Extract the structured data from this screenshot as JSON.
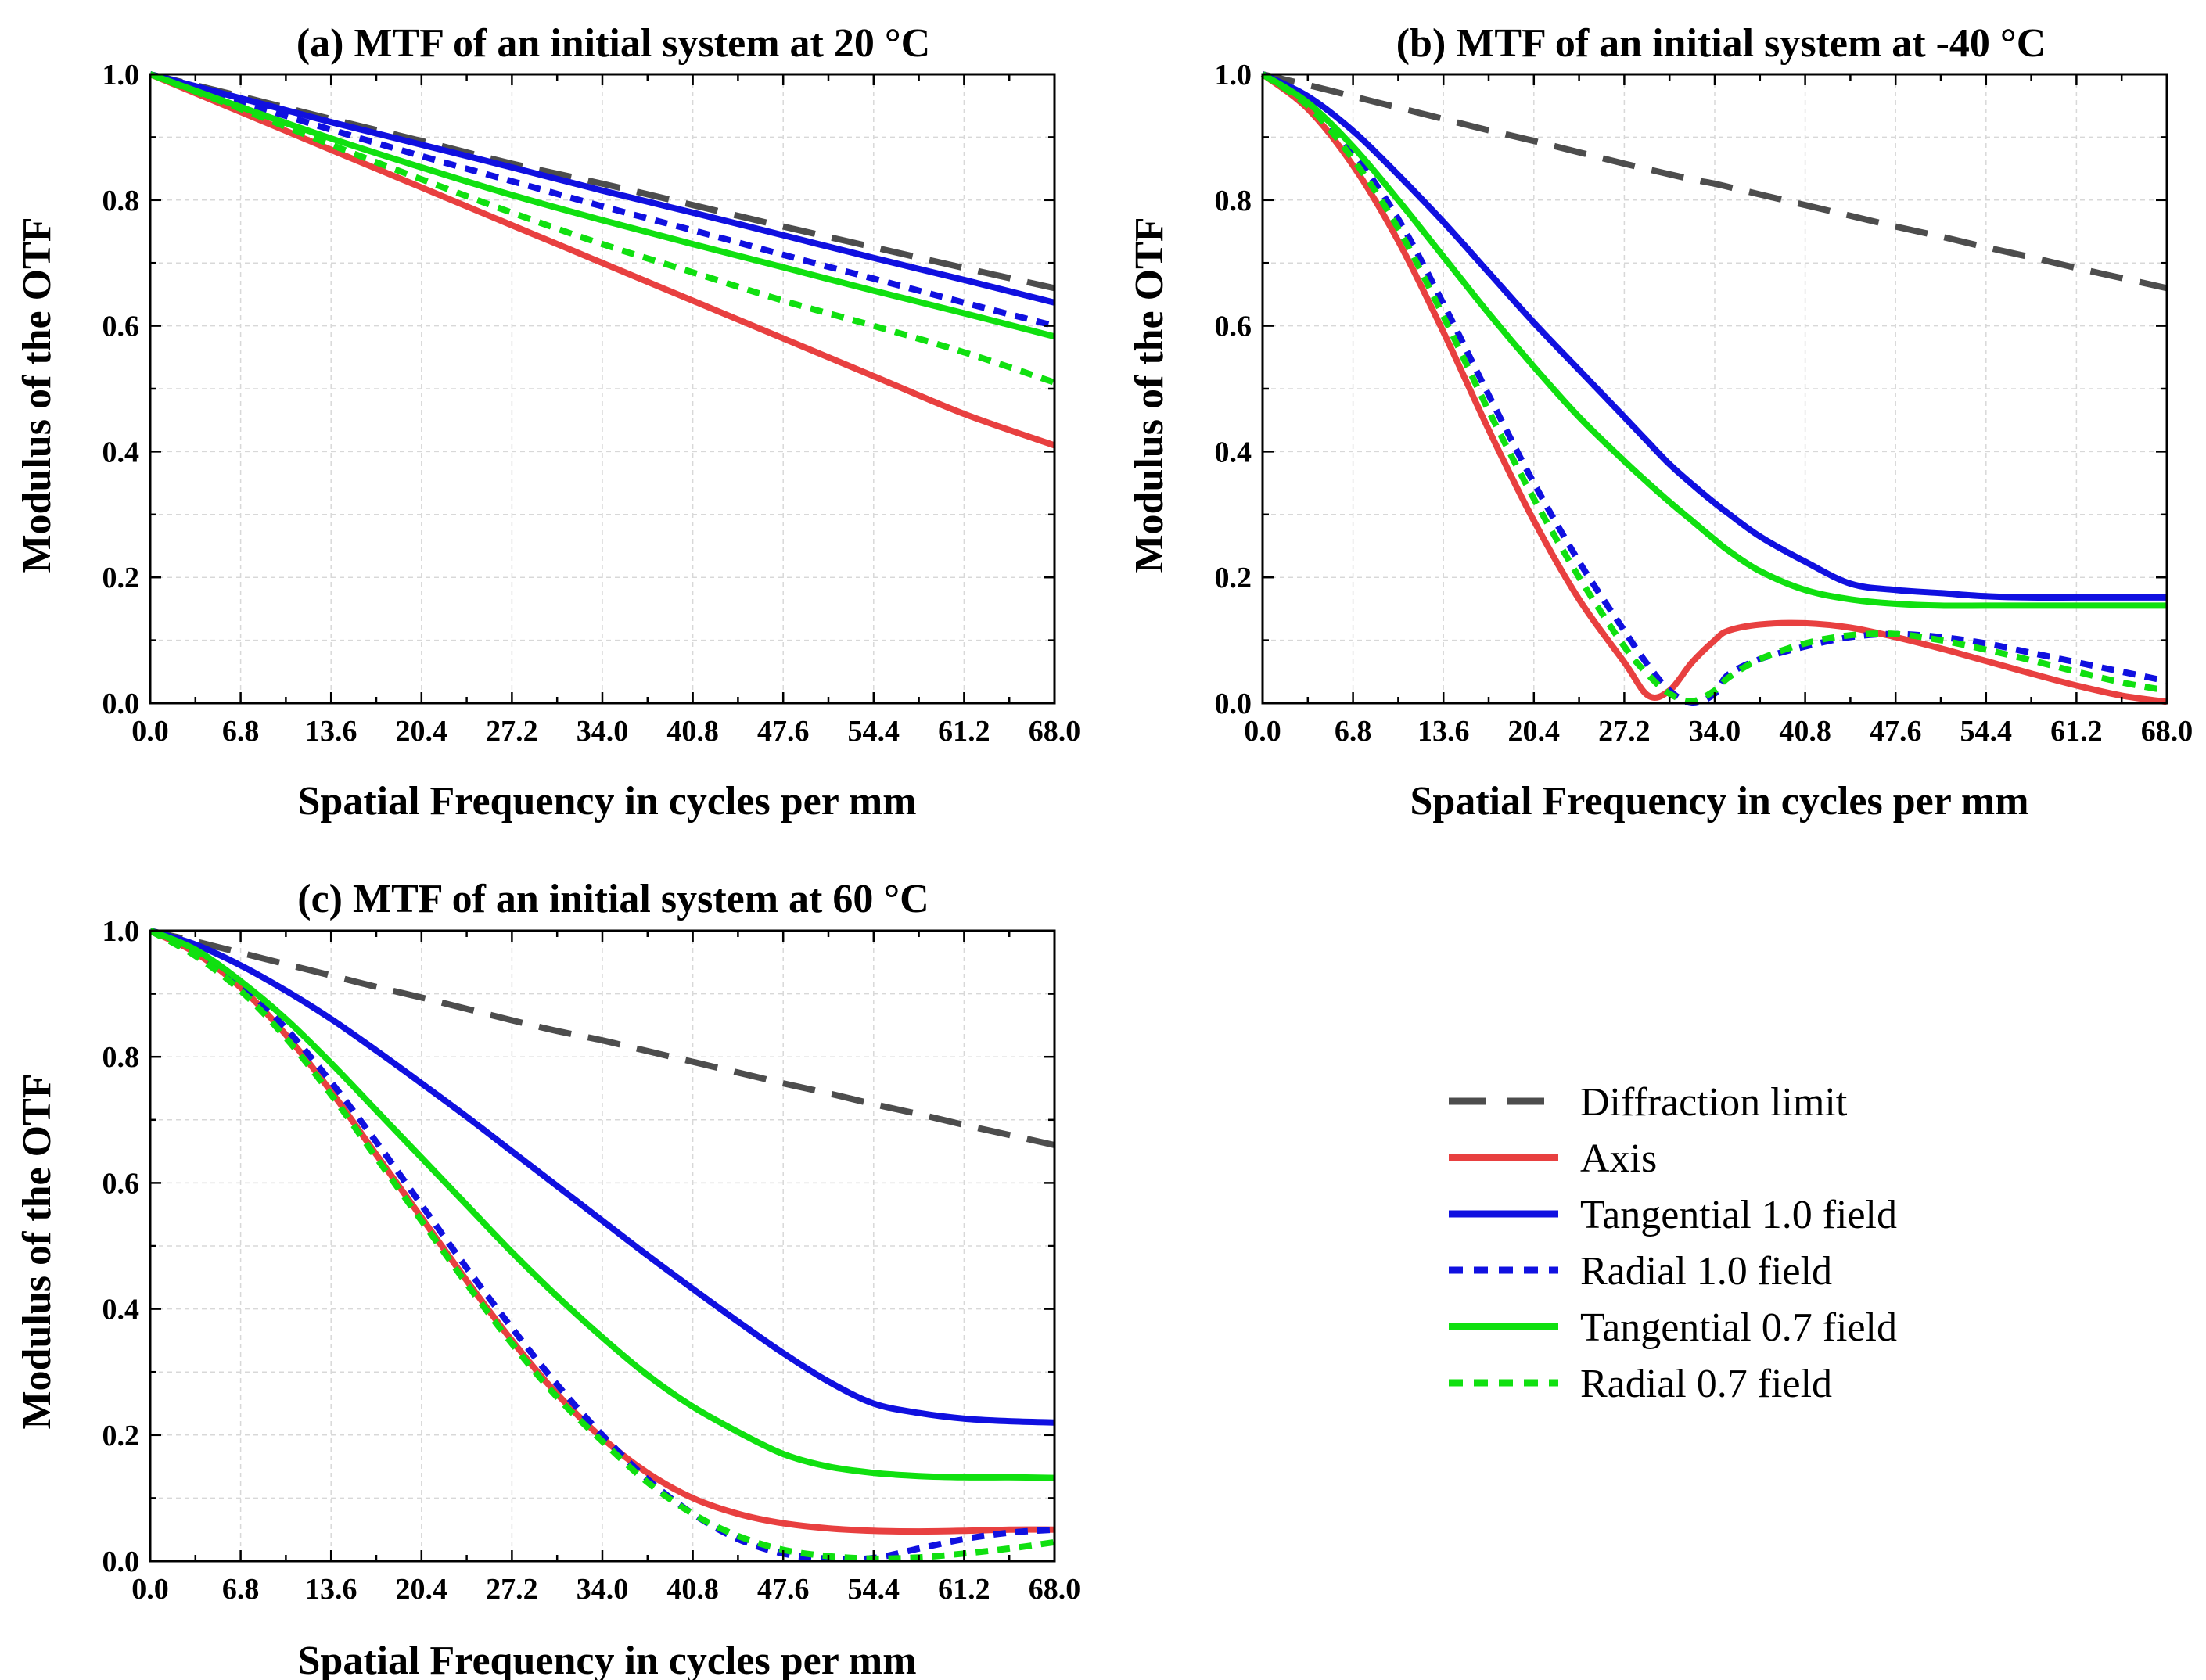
{
  "series_styles": {
    "Diffraction limit": {
      "color": "#4d4d4d",
      "dash": "dashed"
    },
    "Axis": {
      "color": "#e84040",
      "dash": "solid"
    },
    "Tangential 1.0 field": {
      "color": "#1010e0",
      "dash": "solid"
    },
    "Radial 1.0 field": {
      "color": "#1010e0",
      "dash": "dotted"
    },
    "Tangential 0.7 field": {
      "color": "#10e010",
      "dash": "solid"
    },
    "Radial 0.7 field": {
      "color": "#10e010",
      "dash": "dotted"
    }
  },
  "legend": {
    "entries": [
      "Diffraction limit",
      "Axis",
      "Tangential 1.0 field",
      "Radial 1.0 field",
      "Tangential 0.7 field",
      "Radial 0.7 field"
    ]
  },
  "chart_data": [
    {
      "type": "line",
      "title": "(a) MTF of an initial system at 20 °C",
      "xlabel": "Spatial Frequency in cycles per mm",
      "ylabel": "Modulus of the OTF",
      "xlim": [
        0,
        68
      ],
      "ylim": [
        0,
        1
      ],
      "xticks": [
        "0.0",
        "6.8",
        "13.6",
        "20.4",
        "27.2",
        "34.0",
        "40.8",
        "47.6",
        "54.4",
        "61.2",
        "68.0"
      ],
      "yticks": [
        "0.0",
        "0.2",
        "0.4",
        "0.6",
        "0.8",
        "1.0"
      ],
      "x": [
        0,
        6.8,
        13.6,
        20.4,
        27.2,
        34.0,
        40.8,
        47.6,
        54.4,
        61.2,
        68.0
      ],
      "series": [
        {
          "name": "Diffraction limit",
          "values": [
            1.0,
            0.965,
            0.929,
            0.894,
            0.858,
            0.826,
            0.792,
            0.758,
            0.725,
            0.692,
            0.66
          ]
        },
        {
          "name": "Axis",
          "values": [
            1.0,
            0.94,
            0.88,
            0.82,
            0.76,
            0.7,
            0.64,
            0.58,
            0.52,
            0.46,
            0.41
          ]
        },
        {
          "name": "Tangential 1.0 field",
          "values": [
            1.0,
            0.962,
            0.924,
            0.888,
            0.852,
            0.815,
            0.78,
            0.744,
            0.708,
            0.673,
            0.637
          ]
        },
        {
          "name": "Radial 1.0 field",
          "values": [
            1.0,
            0.956,
            0.912,
            0.87,
            0.83,
            0.79,
            0.752,
            0.713,
            0.675,
            0.637,
            0.6
          ]
        },
        {
          "name": "Tangential 0.7 field",
          "values": [
            1.0,
            0.948,
            0.898,
            0.852,
            0.808,
            0.768,
            0.73,
            0.693,
            0.656,
            0.62,
            0.583
          ]
        },
        {
          "name": "Radial 0.7 field",
          "values": [
            1.0,
            0.945,
            0.888,
            0.833,
            0.78,
            0.73,
            0.685,
            0.64,
            0.6,
            0.558,
            0.51
          ]
        }
      ]
    },
    {
      "type": "line",
      "title": "(b) MTF of an initial system at -40 °C",
      "xlabel": "Spatial Frequency in cycles per mm",
      "ylabel": "Modulus of the OTF",
      "xlim": [
        0,
        68
      ],
      "ylim": [
        0,
        1
      ],
      "xticks": [
        "0.0",
        "6.8",
        "13.6",
        "20.4",
        "27.2",
        "34.0",
        "40.8",
        "47.6",
        "54.4",
        "61.2",
        "68.0"
      ],
      "yticks": [
        "0.0",
        "0.2",
        "0.4",
        "0.6",
        "0.8",
        "1.0"
      ],
      "x": [
        0,
        3.4,
        6.8,
        10.2,
        13.6,
        17.0,
        20.4,
        23.8,
        27.2,
        29.0,
        30.6,
        32.3,
        34.0,
        35.0,
        37.4,
        40.8,
        44.2,
        47.6,
        51.0,
        54.4,
        57.8,
        61.2,
        64.6,
        68.0
      ],
      "series": [
        {
          "name": "Diffraction limit",
          "values": [
            1.0,
            0.983,
            0.965,
            0.947,
            0.929,
            0.911,
            0.894,
            0.876,
            0.858,
            0.849,
            0.841,
            0.833,
            0.826,
            0.821,
            0.809,
            0.792,
            0.775,
            0.758,
            0.742,
            0.725,
            0.709,
            0.692,
            0.676,
            0.66
          ]
        },
        {
          "name": "Axis",
          "values": [
            1.0,
            0.945,
            0.855,
            0.735,
            0.59,
            0.435,
            0.29,
            0.165,
            0.065,
            0.012,
            0.02,
            0.065,
            0.1,
            0.115,
            0.125,
            0.127,
            0.12,
            0.105,
            0.087,
            0.067,
            0.047,
            0.028,
            0.012,
            0.002
          ]
        },
        {
          "name": "Tangential 1.0 field",
          "values": [
            1.0,
            0.965,
            0.91,
            0.84,
            0.765,
            0.685,
            0.605,
            0.53,
            0.455,
            0.415,
            0.38,
            0.348,
            0.318,
            0.302,
            0.265,
            0.225,
            0.19,
            0.18,
            0.175,
            0.17,
            0.168,
            0.168,
            0.168,
            0.168
          ]
        },
        {
          "name": "Radial 1.0 field",
          "values": [
            1.0,
            0.955,
            0.875,
            0.77,
            0.635,
            0.49,
            0.35,
            0.225,
            0.115,
            0.06,
            0.02,
            0.0,
            0.015,
            0.045,
            0.07,
            0.09,
            0.105,
            0.11,
            0.105,
            0.095,
            0.08,
            0.065,
            0.05,
            0.035
          ]
        },
        {
          "name": "Tangential 0.7 field",
          "values": [
            1.0,
            0.955,
            0.885,
            0.8,
            0.71,
            0.62,
            0.535,
            0.455,
            0.385,
            0.35,
            0.32,
            0.29,
            0.26,
            0.243,
            0.21,
            0.18,
            0.165,
            0.158,
            0.155,
            0.155,
            0.155,
            0.155,
            0.155,
            0.155
          ]
        },
        {
          "name": "Radial 0.7 field",
          "values": [
            1.0,
            0.95,
            0.865,
            0.755,
            0.615,
            0.465,
            0.325,
            0.2,
            0.09,
            0.045,
            0.015,
            0.003,
            0.02,
            0.04,
            0.07,
            0.095,
            0.108,
            0.11,
            0.1,
            0.085,
            0.068,
            0.05,
            0.033,
            0.02
          ]
        }
      ]
    },
    {
      "type": "line",
      "title": "(c) MTF of an initial system at 60 °C",
      "xlabel": "Spatial Frequency in cycles per mm",
      "ylabel": "Modulus of the OTF",
      "xlim": [
        0,
        68
      ],
      "ylim": [
        0,
        1
      ],
      "xticks": [
        "0.0",
        "6.8",
        "13.6",
        "20.4",
        "27.2",
        "34.0",
        "40.8",
        "47.6",
        "54.4",
        "61.2",
        "68.0"
      ],
      "yticks": [
        "0.0",
        "0.2",
        "0.4",
        "0.6",
        "0.8",
        "1.0"
      ],
      "x": [
        0,
        3.4,
        6.8,
        10.2,
        13.6,
        17.0,
        20.4,
        23.8,
        27.2,
        30.6,
        34.0,
        37.4,
        40.8,
        44.2,
        47.6,
        51.0,
        54.4,
        57.8,
        61.2,
        64.6,
        68.0
      ],
      "series": [
        {
          "name": "Diffraction limit",
          "values": [
            1.0,
            0.983,
            0.965,
            0.947,
            0.929,
            0.911,
            0.894,
            0.876,
            0.858,
            0.841,
            0.826,
            0.809,
            0.792,
            0.775,
            0.758,
            0.742,
            0.725,
            0.709,
            0.692,
            0.676,
            0.66
          ]
        },
        {
          "name": "Axis",
          "values": [
            1.0,
            0.965,
            0.91,
            0.835,
            0.745,
            0.645,
            0.545,
            0.445,
            0.35,
            0.265,
            0.195,
            0.14,
            0.1,
            0.075,
            0.06,
            0.052,
            0.048,
            0.047,
            0.048,
            0.05,
            0.05
          ]
        },
        {
          "name": "Tangential 1.0 field",
          "values": [
            1.0,
            0.978,
            0.945,
            0.905,
            0.86,
            0.81,
            0.758,
            0.705,
            0.65,
            0.595,
            0.54,
            0.485,
            0.432,
            0.38,
            0.33,
            0.285,
            0.25,
            0.235,
            0.226,
            0.222,
            0.22
          ]
        },
        {
          "name": "Radial 1.0 field",
          "values": [
            1.0,
            0.965,
            0.915,
            0.845,
            0.76,
            0.665,
            0.565,
            0.465,
            0.37,
            0.28,
            0.2,
            0.13,
            0.075,
            0.035,
            0.012,
            0.004,
            0.005,
            0.02,
            0.035,
            0.045,
            0.05
          ]
        },
        {
          "name": "Tangential 0.7 field",
          "values": [
            1.0,
            0.97,
            0.92,
            0.86,
            0.79,
            0.715,
            0.64,
            0.565,
            0.49,
            0.42,
            0.355,
            0.295,
            0.245,
            0.205,
            0.17,
            0.15,
            0.14,
            0.135,
            0.133,
            0.133,
            0.132
          ]
        },
        {
          "name": "Radial 0.7 field",
          "values": [
            1.0,
            0.96,
            0.905,
            0.83,
            0.74,
            0.64,
            0.54,
            0.44,
            0.345,
            0.26,
            0.19,
            0.125,
            0.075,
            0.04,
            0.018,
            0.008,
            0.004,
            0.006,
            0.012,
            0.02,
            0.03
          ]
        }
      ]
    }
  ]
}
